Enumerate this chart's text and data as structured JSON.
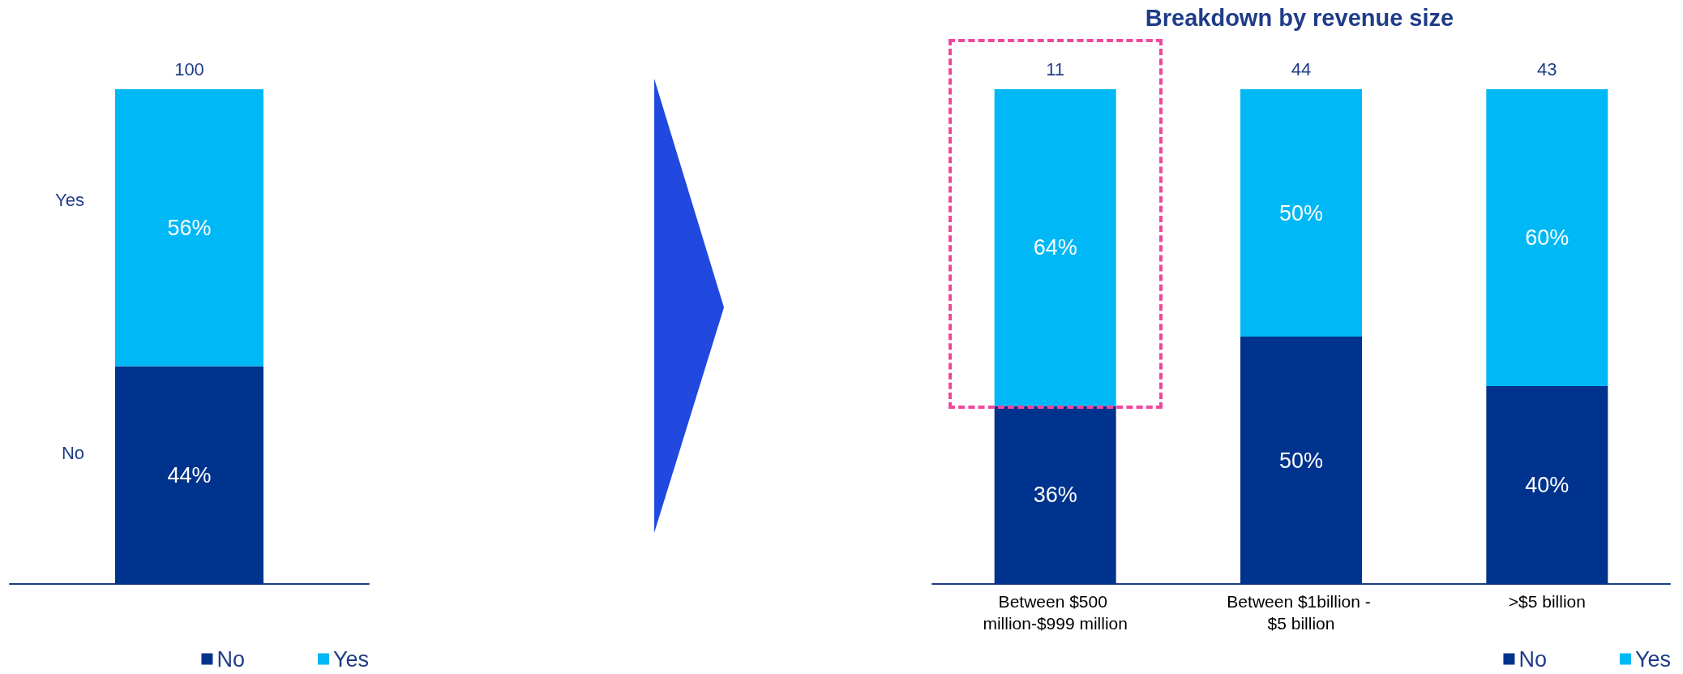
{
  "chart_data": [
    {
      "type": "bar",
      "stacked": true,
      "categories": [
        null
      ],
      "series": [
        {
          "name": "No",
          "color": "#00338d",
          "values": [
            44
          ],
          "value_labels": [
            "44%"
          ]
        },
        {
          "name": "Yes",
          "color": "#00b8f5",
          "values": [
            56
          ],
          "value_labels": [
            "56%"
          ]
        }
      ],
      "annotations": [
        {
          "text": "100",
          "y": 100
        }
      ],
      "legend": "bottom right",
      "tick_labels": false
    },
    {
      "type": "bar",
      "stacked": true,
      "title": "Breakdown by revenue size",
      "categories": [
        "Between $500 million-$999 million",
        "Between $1billion - $5 billion",
        ">$5 billion"
      ],
      "series": [
        {
          "name": "No",
          "color": "#00338d",
          "values": [
            36,
            50,
            40
          ],
          "value_labels": [
            "36%",
            "50%",
            "40%"
          ]
        },
        {
          "name": "Yes",
          "color": "#00b8f5",
          "values": [
            64,
            50,
            60
          ],
          "value_labels": [
            "64%",
            "50%",
            "60%"
          ]
        }
      ],
      "annotations": [
        {
          "text": "11",
          "x": "Between $500 million-$999 million",
          "y": 100
        },
        {
          "text": "44",
          "x": "Between $1billion - $5 billion",
          "y": 100
        },
        {
          "text": "43",
          "x": ">$5 billion",
          "y": 100
        }
      ],
      "legend": "bottom right",
      "tick_labels": "x"
    }
  ]
}
